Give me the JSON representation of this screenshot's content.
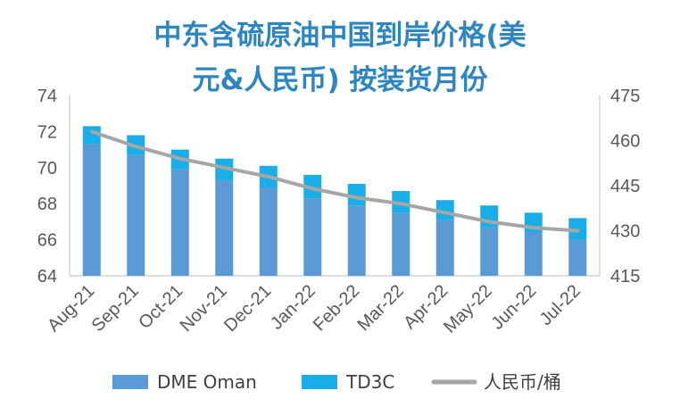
{
  "chart_data": {
    "type": "bar",
    "title_line1": "中东含硫原油中国到岸价格(美",
    "title_line2": "元&人民币) 按装货月份",
    "categories": [
      "Aug-21",
      "Sep-21",
      "Oct-21",
      "Nov-21",
      "Dec-21",
      "Jan-22",
      "Feb-22",
      "Mar-22",
      "Apr-22",
      "May-22",
      "Jun-22",
      "Jul-22"
    ],
    "series": [
      {
        "name": "DME Oman",
        "type": "bar",
        "stack": "usd",
        "axis": "left",
        "color": "#5b9bd5",
        "values": [
          71.3,
          70.7,
          69.9,
          69.3,
          68.9,
          68.3,
          67.9,
          67.5,
          67.1,
          66.7,
          66.4,
          66.0
        ]
      },
      {
        "name": "TD3C",
        "type": "bar",
        "stack": "usd",
        "axis": "left",
        "color": "#1aaee8",
        "values": [
          1.0,
          1.1,
          1.1,
          1.2,
          1.2,
          1.3,
          1.2,
          1.2,
          1.1,
          1.2,
          1.1,
          1.2
        ]
      },
      {
        "name": "人民币/桶",
        "type": "line",
        "axis": "right",
        "color": "#a6a6a6",
        "values": [
          463,
          458,
          454,
          451,
          448,
          444,
          441,
          439,
          436,
          433,
          431,
          430
        ]
      }
    ],
    "y_left": {
      "min": 64,
      "max": 74,
      "ticks": [
        64,
        66,
        68,
        70,
        72,
        74
      ]
    },
    "y_right": {
      "min": 415,
      "max": 475,
      "ticks": [
        415,
        430,
        445,
        460,
        475
      ]
    },
    "grid": false,
    "legend_position": "bottom"
  }
}
